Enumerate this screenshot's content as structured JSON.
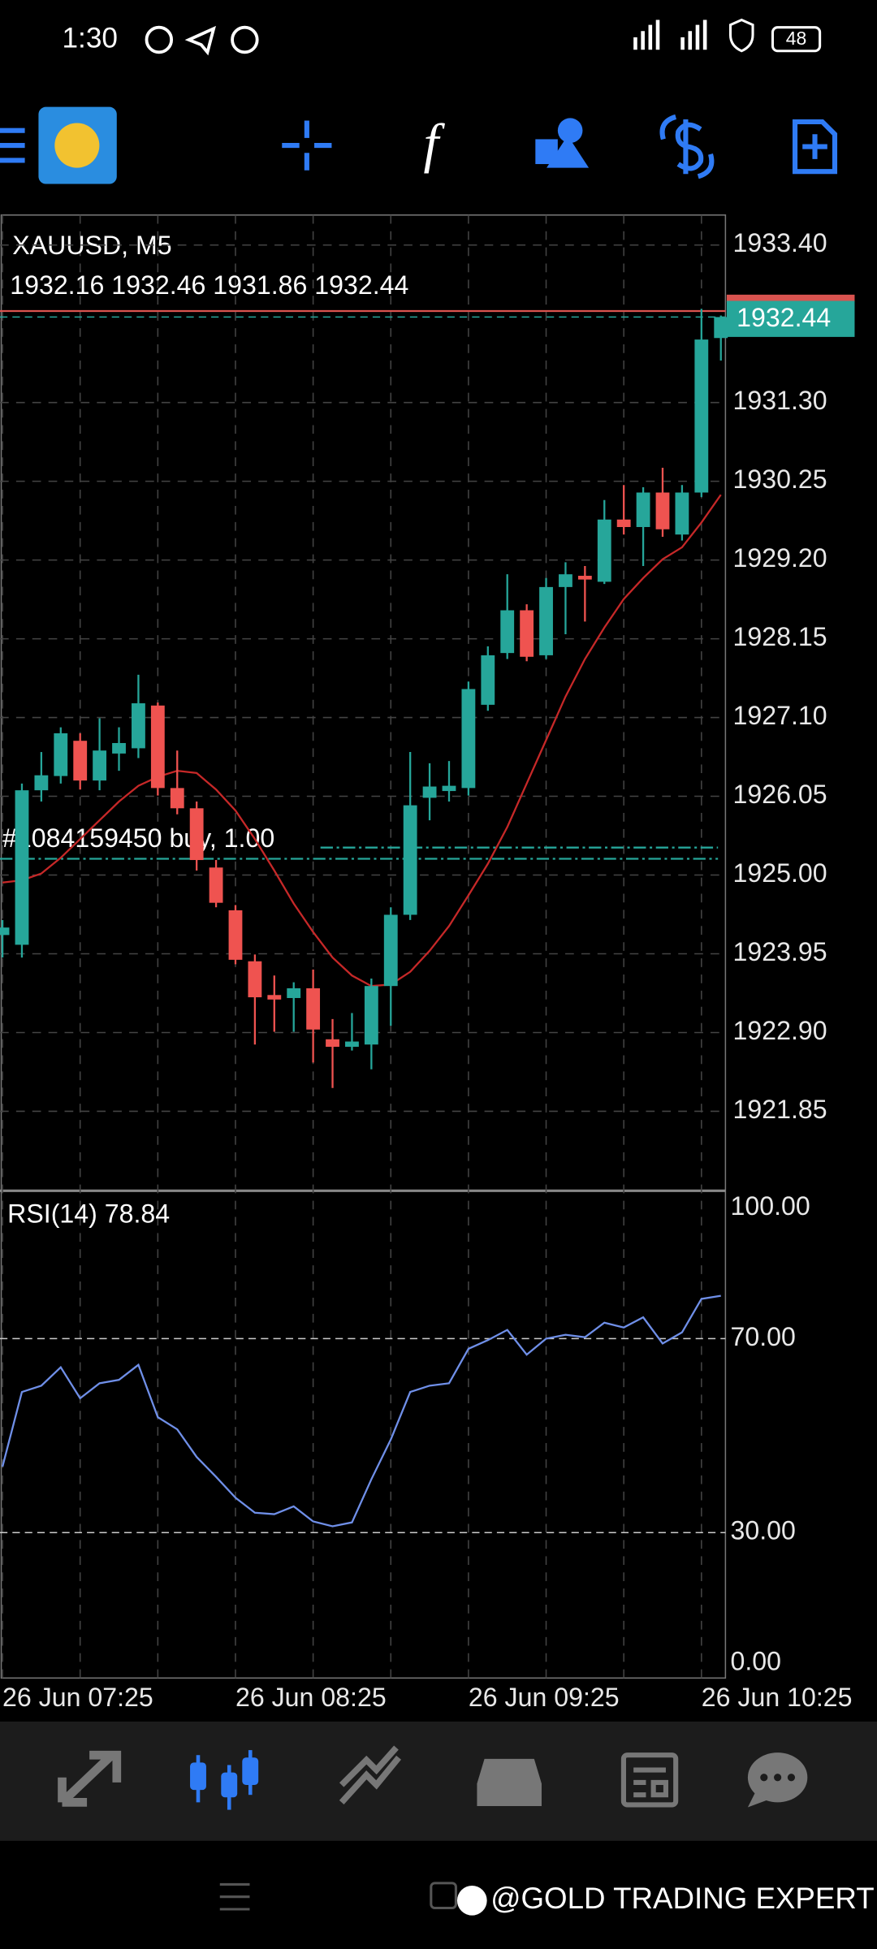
{
  "status_bar": {
    "time": "1:30",
    "battery": "48"
  },
  "watermark": "@GOLD TRADING EXPERT",
  "chart_data": [
    {
      "type": "candlestick",
      "title": "XAUUSD, M5",
      "ohlc_label": "1932.16 1932.46 1931.86 1932.44",
      "categories": [
        "26 Jun 07:25",
        null,
        null,
        null,
        null,
        null,
        null,
        null,
        null,
        null,
        null,
        null,
        "26 Jun 08:25",
        null,
        null,
        null,
        null,
        null,
        null,
        null,
        null,
        null,
        null,
        null,
        "26 Jun 09:25",
        null,
        null,
        null,
        null,
        null,
        null,
        null,
        null,
        null,
        null,
        null,
        "26 Jun 10:25",
        null
      ],
      "open": [
        1924.2,
        1924.07,
        1926.13,
        1926.32,
        1926.79,
        1926.26,
        1926.62,
        1926.69,
        1927.26,
        1926.16,
        1925.89,
        1925.1,
        1924.53,
        1923.85,
        1923.4,
        1923.36,
        1923.49,
        1922.81,
        1922.71,
        1922.74,
        1923.52,
        1924.47,
        1926.03,
        1926.12,
        1926.16,
        1927.27,
        1927.96,
        1928.53,
        1927.93,
        1928.84,
        1928.99,
        1928.91,
        1929.74,
        1929.64,
        1930.1,
        1929.54,
        1930.1,
        1932.16
      ],
      "high": [
        1924.4,
        1926.22,
        1926.64,
        1926.97,
        1926.89,
        1927.09,
        1926.97,
        1927.67,
        1927.3,
        1926.66,
        1925.98,
        1925.2,
        1924.6,
        1923.94,
        1923.66,
        1923.57,
        1923.74,
        1923.08,
        1923.16,
        1923.62,
        1924.57,
        1926.64,
        1926.49,
        1926.52,
        1927.58,
        1928.05,
        1929.01,
        1928.61,
        1928.96,
        1929.17,
        1929.12,
        1930.0,
        1930.2,
        1930.17,
        1930.43,
        1930.2,
        1932.55,
        1932.46
      ],
      "low": [
        1923.9,
        1923.9,
        1925.98,
        1926.22,
        1926.14,
        1926.13,
        1926.39,
        1926.56,
        1926.06,
        1925.81,
        1925.06,
        1924.57,
        1923.81,
        1922.74,
        1922.91,
        1922.91,
        1922.5,
        1922.16,
        1922.66,
        1922.41,
        1922.99,
        1924.4,
        1925.73,
        1925.98,
        1926.06,
        1927.19,
        1927.88,
        1927.85,
        1927.88,
        1928.21,
        1928.38,
        1928.88,
        1929.54,
        1929.12,
        1929.51,
        1929.46,
        1930.04,
        1931.86
      ],
      "close": [
        1924.3,
        1926.13,
        1926.33,
        1926.89,
        1926.26,
        1926.66,
        1926.76,
        1927.29,
        1926.16,
        1925.89,
        1925.2,
        1924.63,
        1923.87,
        1923.37,
        1923.34,
        1923.49,
        1922.94,
        1922.71,
        1922.78,
        1923.52,
        1924.47,
        1925.93,
        1926.18,
        1926.19,
        1927.48,
        1927.93,
        1928.53,
        1927.91,
        1928.84,
        1929.01,
        1928.94,
        1929.74,
        1929.64,
        1930.1,
        1929.61,
        1930.1,
        1932.14,
        1932.44
      ],
      "up_color": "#26a69a",
      "down_color": "#ef5350",
      "ma_values": [
        1924.9,
        1924.93,
        1925.02,
        1925.23,
        1925.48,
        1925.73,
        1925.98,
        1926.19,
        1926.31,
        1926.39,
        1926.36,
        1926.14,
        1925.86,
        1925.48,
        1925.06,
        1924.62,
        1924.24,
        1923.9,
        1923.66,
        1923.52,
        1923.54,
        1923.71,
        1923.99,
        1924.32,
        1924.73,
        1925.15,
        1925.64,
        1926.22,
        1926.8,
        1927.38,
        1927.88,
        1928.3,
        1928.68,
        1928.96,
        1929.21,
        1929.37,
        1929.7,
        1930.07
      ],
      "ma_color": "#c62828",
      "ylim": [
        1920.79,
        1933.8
      ],
      "yticks": [
        {
          "value": 1933.4,
          "label": "1933.40"
        },
        {
          "value": 1931.3,
          "label": "1931.30"
        },
        {
          "value": 1930.25,
          "label": "1930.25"
        },
        {
          "value": 1929.2,
          "label": "1929.20"
        },
        {
          "value": 1928.15,
          "label": "1928.15"
        },
        {
          "value": 1927.1,
          "label": "1927.10"
        },
        {
          "value": 1926.05,
          "label": "1926.05"
        },
        {
          "value": 1925,
          "label": "1925.00"
        },
        {
          "value": 1923.95,
          "label": "1923.95"
        },
        {
          "value": 1922.9,
          "label": "1922.90"
        },
        {
          "value": 1921.85,
          "label": "1921.85"
        }
      ],
      "grid": true,
      "price_label": {
        "value": 1932.44,
        "label": "1932.44"
      },
      "ask": 1932.52,
      "order": {
        "label": "#1084159450 buy, 1.00",
        "price": 1925.3
      }
    },
    {
      "type": "line",
      "title": "RSI(14) 78.84",
      "values": [
        43.6,
        59.0,
        60.3,
        64.1,
        57.7,
        60.8,
        61.5,
        64.6,
        53.8,
        51.3,
        45.6,
        41.5,
        37.2,
        34.1,
        33.8,
        35.4,
        32.3,
        31.3,
        32.1,
        41.0,
        49.2,
        59.0,
        60.3,
        60.8,
        67.9,
        69.7,
        71.8,
        66.7,
        70.0,
        70.8,
        70.3,
        73.3,
        72.3,
        74.4,
        69.0,
        71.3,
        78.2,
        78.84
      ],
      "color": "#6f8fe8",
      "ylim": [
        0,
        100.5
      ],
      "yticks": [
        {
          "value": 100,
          "label": "100.00"
        },
        {
          "value": 70,
          "label": "70.00"
        },
        {
          "value": 30,
          "label": "30.00"
        },
        {
          "value": 0,
          "label": "0.00"
        }
      ]
    }
  ]
}
